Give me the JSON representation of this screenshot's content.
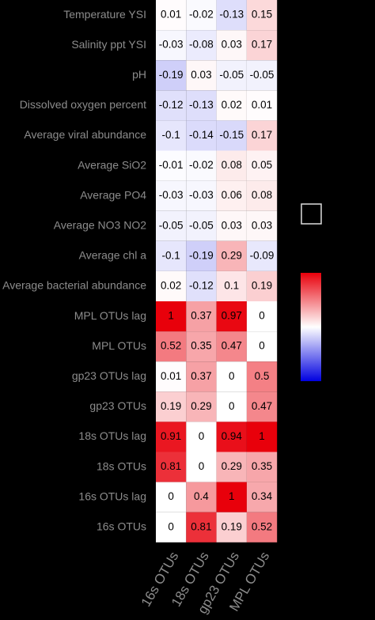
{
  "chart_data": {
    "type": "heatmap",
    "rows": [
      "Temperature YSI",
      "Salinity ppt YSI",
      "pH",
      "Dissolved oxygen percent",
      "Average viral abundance",
      "Average SiO2",
      "Average PO4",
      "Average NO3 NO2",
      "Average chl a",
      "Average bacterial abundance",
      "MPL OTUs lag",
      "MPL OTUs",
      "gp23 OTUs lag",
      "gp23 OTUs",
      "18s OTUs lag",
      "18s OTUs",
      "16s OTUs lag",
      "16s OTUs"
    ],
    "columns": [
      "16s OTUs",
      "18s OTUs",
      "gp23 OTUs",
      "MPL OTUs"
    ],
    "values": [
      [
        0.01,
        -0.02,
        -0.13,
        0.15
      ],
      [
        -0.03,
        -0.08,
        0.03,
        0.17
      ],
      [
        -0.19,
        0.03,
        -0.05,
        -0.05
      ],
      [
        -0.12,
        -0.13,
        0.02,
        0.01
      ],
      [
        -0.1,
        -0.14,
        -0.15,
        0.17
      ],
      [
        -0.01,
        -0.02,
        0.08,
        0.05
      ],
      [
        -0.03,
        -0.03,
        0.06,
        0.08
      ],
      [
        -0.05,
        -0.05,
        0.03,
        0.03
      ],
      [
        -0.1,
        -0.19,
        0.29,
        -0.09
      ],
      [
        0.02,
        -0.12,
        0.1,
        0.19
      ],
      [
        1,
        0.37,
        0.97,
        0
      ],
      [
        0.52,
        0.35,
        0.47,
        0
      ],
      [
        0.01,
        0.37,
        0,
        0.5
      ],
      [
        0.19,
        0.29,
        0,
        0.47
      ],
      [
        0.91,
        0,
        0.94,
        1
      ],
      [
        0.81,
        0,
        0.29,
        0.35
      ],
      [
        0,
        0.4,
        1,
        0.34
      ],
      [
        0,
        0.81,
        0.19,
        0.52
      ]
    ],
    "clim": [
      -1,
      1
    ],
    "colors": [
      "#0000e0",
      "#ffffff",
      "#e8000b"
    ]
  }
}
